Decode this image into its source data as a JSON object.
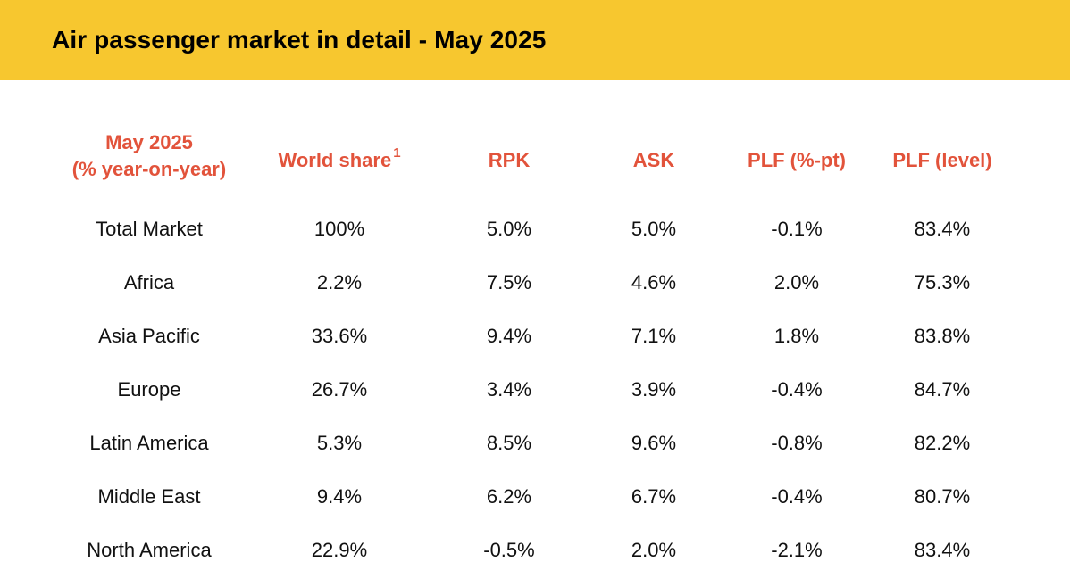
{
  "title": "Air passenger market in detail - May 2025",
  "header": {
    "col0_line1": "May 2025",
    "col0_line2": "(% year-on-year)",
    "world_share": "World share",
    "world_share_sup": "1",
    "rpk": "RPK",
    "ask": "ASK",
    "plf_pt": "PLF (%-pt)",
    "plf_level": "PLF (level)"
  },
  "rows": [
    {
      "region": "Total Market",
      "world_share": "100%",
      "rpk": "5.0%",
      "ask": "5.0%",
      "plf_pt": "-0.1%",
      "plf_level": "83.4%"
    },
    {
      "region": "Africa",
      "world_share": "2.2%",
      "rpk": "7.5%",
      "ask": "4.6%",
      "plf_pt": "2.0%",
      "plf_level": "75.3%"
    },
    {
      "region": "Asia Pacific",
      "world_share": "33.6%",
      "rpk": "9.4%",
      "ask": "7.1%",
      "plf_pt": "1.8%",
      "plf_level": "83.8%"
    },
    {
      "region": "Europe",
      "world_share": "26.7%",
      "rpk": "3.4%",
      "ask": "3.9%",
      "plf_pt": "-0.4%",
      "plf_level": "84.7%"
    },
    {
      "region": "Latin America",
      "world_share": "5.3%",
      "rpk": "8.5%",
      "ask": "9.6%",
      "plf_pt": "-0.8%",
      "plf_level": "82.2%"
    },
    {
      "region": "Middle East",
      "world_share": "9.4%",
      "rpk": "6.2%",
      "ask": "6.7%",
      "plf_pt": "-0.4%",
      "plf_level": "80.7%"
    },
    {
      "region": "North America",
      "world_share": "22.9%",
      "rpk": "-0.5%",
      "ask": "2.0%",
      "plf_pt": "-2.1%",
      "plf_level": "83.4%"
    }
  ],
  "colors": {
    "banner": "#f7c72f",
    "header_text": "#e2533b",
    "body_text": "#111111"
  }
}
